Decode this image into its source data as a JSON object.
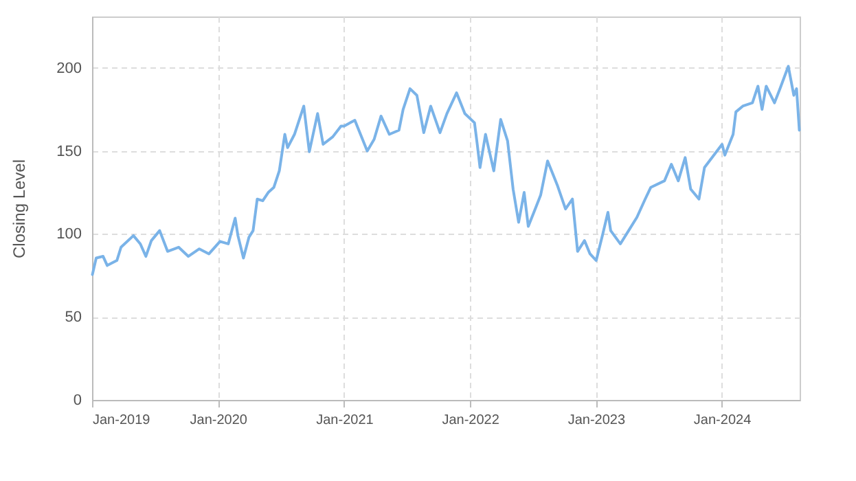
{
  "chart_data": {
    "type": "line",
    "ylabel": "Closing Level",
    "x": [
      "2019-01-02",
      "2019-01-13",
      "2019-02-02",
      "2019-02-14",
      "2019-03-14",
      "2019-03-26",
      "2019-05-01",
      "2019-05-21",
      "2019-06-06",
      "2019-06-22",
      "2019-07-16",
      "2019-08-08",
      "2019-09-09",
      "2019-10-07",
      "2019-11-08",
      "2019-12-06",
      "2020-01-07",
      "2020-01-31",
      "2020-02-20",
      "2020-02-28",
      "2020-03-15",
      "2020-03-31",
      "2020-04-12",
      "2020-04-24",
      "2020-05-10",
      "2020-05-26",
      "2020-06-11",
      "2020-06-27",
      "2020-07-13",
      "2020-07-21",
      "2020-08-10",
      "2020-09-06",
      "2020-09-22",
      "2020-10-16",
      "2020-11-01",
      "2020-11-29",
      "2020-12-23",
      "2021-01-01",
      "2021-02-01",
      "2021-03-09",
      "2021-03-29",
      "2021-04-18",
      "2021-05-12",
      "2021-06-09",
      "2021-06-21",
      "2021-07-11",
      "2021-07-31",
      "2021-08-20",
      "2021-09-09",
      "2021-10-06",
      "2021-10-26",
      "2021-11-23",
      "2021-12-17",
      "2022-01-14",
      "2022-01-22",
      "2022-01-30",
      "2022-02-15",
      "2022-03-11",
      "2022-03-31",
      "2022-04-20",
      "2022-05-06",
      "2022-05-22",
      "2022-06-07",
      "2022-06-19",
      "2022-07-09",
      "2022-07-25",
      "2022-08-14",
      "2022-09-11",
      "2022-10-05",
      "2022-10-25",
      "2022-11-09",
      "2022-11-29",
      "2022-12-15",
      "2023-01-02",
      "2023-01-20",
      "2023-02-05",
      "2023-02-13",
      "2023-03-13",
      "2023-04-06",
      "2023-04-30",
      "2023-05-24",
      "2023-06-09",
      "2023-07-19",
      "2023-08-08",
      "2023-08-28",
      "2023-09-17",
      "2023-10-03",
      "2023-10-27",
      "2023-11-12",
      "2023-12-13",
      "2024-01-02",
      "2024-01-10",
      "2024-02-03",
      "2024-02-11",
      "2024-03-02",
      "2024-03-30",
      "2024-04-15",
      "2024-04-27",
      "2024-05-09",
      "2024-06-02",
      "2024-06-18",
      "2024-07-12",
      "2024-07-28",
      "2024-08-05",
      "2024-08-13"
    ],
    "series": [
      {
        "color": "#7ab3e8",
        "values": [
          75.5,
          85.5,
          86.5,
          81,
          84,
          92,
          99,
          94,
          86.5,
          96,
          102,
          89.5,
          92,
          86.5,
          91,
          88,
          95.5,
          94,
          109.5,
          99,
          85.5,
          98,
          102,
          121,
          120,
          125,
          128,
          138,
          160,
          152,
          160,
          177,
          149.5,
          172.5,
          154,
          158.5,
          165,
          165,
          168.5,
          150,
          157,
          171,
          160,
          162.5,
          175,
          187.5,
          183.5,
          161,
          177,
          161,
          172.5,
          185,
          172.5,
          167,
          154,
          140,
          160,
          138,
          169,
          156,
          127,
          107,
          125,
          104.5,
          115,
          123.5,
          144,
          129.5,
          115,
          121,
          89.5,
          96,
          88,
          84,
          99,
          113,
          102,
          94,
          102,
          110,
          121,
          128,
          132,
          142,
          132,
          146,
          127,
          121,
          140,
          148.5,
          154,
          147.5,
          160,
          173.5,
          177,
          179,
          189,
          175,
          189,
          179,
          187.5,
          201,
          183.5,
          187.5,
          162.5
        ]
      }
    ],
    "xlim": [
      "2019-01-01",
      "2024-08-14"
    ],
    "xticks": [
      {
        "value": "2019-01-01",
        "label": "Jan-2019"
      },
      {
        "value": "2020-01-01",
        "label": "Jan-2020"
      },
      {
        "value": "2021-01-01",
        "label": "Jan-2021"
      },
      {
        "value": "2022-01-01",
        "label": "Jan-2022"
      },
      {
        "value": "2023-01-01",
        "label": "Jan-2023"
      },
      {
        "value": "2024-01-01",
        "label": "Jan-2024"
      }
    ],
    "ylim": [
      0,
      231
    ],
    "yticks": [
      0,
      50,
      100,
      150,
      200
    ],
    "grid": true,
    "line_style": "solid"
  }
}
